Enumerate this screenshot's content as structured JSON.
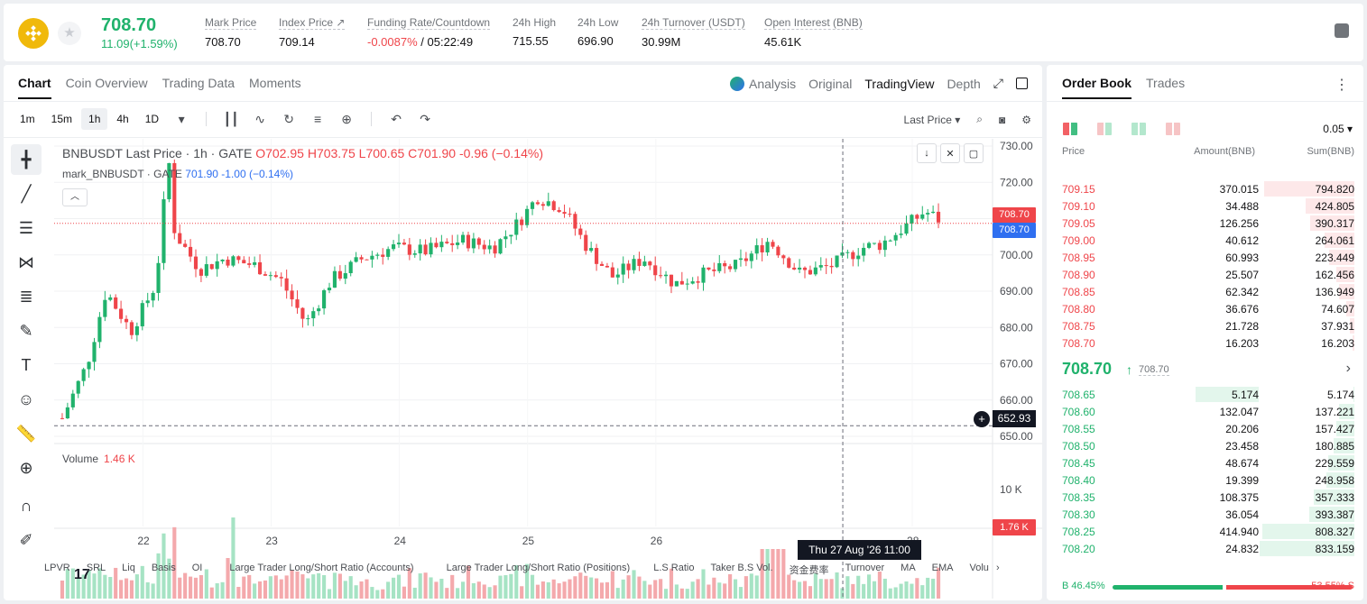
{
  "ticker": {
    "last_price": "708.70",
    "change": "11.09(+1.59%)",
    "stats": [
      {
        "label": "Mark Price",
        "value": "708.70"
      },
      {
        "label": "Index Price ↗",
        "value": "709.14"
      },
      {
        "label": "Funding Rate/Countdown",
        "value_neg": "-0.0087%",
        "value": " / 05:22:49"
      },
      {
        "label": "24h High",
        "value": "715.55"
      },
      {
        "label": "24h Low",
        "value": "696.90"
      },
      {
        "label": "24h Turnover (USDT)",
        "value": "30.99M"
      },
      {
        "label": "Open Interest (BNB)",
        "value": "45.61K"
      }
    ]
  },
  "chart_tabs": [
    "Chart",
    "Coin Overview",
    "Trading Data",
    "Moments"
  ],
  "view_tabs": {
    "analysis": "Analysis",
    "original": "Original",
    "tradingview": "TradingView",
    "depth": "Depth"
  },
  "timeframes": [
    "1m",
    "15m",
    "1h",
    "4h",
    "1D"
  ],
  "price_type": "Last Price",
  "legend": {
    "symbol": "BNBUSDT Last Price · 1h · GATE",
    "o": "O702.95",
    "h": "H703.75",
    "l": "L700.65",
    "c": "C701.90",
    "chg": "-0.96 (−0.14%)",
    "mark": "mark_BNBUSDT · GATE",
    "mark_val": "701.90  -1.00 (−0.14%)"
  },
  "volume": {
    "label": "Volume",
    "value": "1.46 K"
  },
  "tags": {
    "last": "708.70",
    "mark": "708.70",
    "cross": "652.93",
    "vol": "1.76 K",
    "vol_axis": "10 K",
    "date": "Thu 27 Aug '26   11:00"
  },
  "chart_data": {
    "type": "candlestick",
    "title": "BNBUSDT Last Price · 1h · GATE",
    "y_ticks": [
      730,
      720,
      710,
      700,
      690,
      680,
      670,
      660,
      650
    ],
    "ylim": [
      650,
      732
    ],
    "x_ticks": [
      "22",
      "23",
      "24",
      "25",
      "26",
      "28"
    ],
    "x_tick_days": [
      22,
      23,
      24,
      25,
      26,
      28
    ],
    "start_day": 21.35,
    "hours": 165,
    "anchors": [
      [
        0,
        655
      ],
      [
        8,
        670
      ],
      [
        14,
        690
      ],
      [
        22,
        679
      ],
      [
        30,
        692
      ],
      [
        34,
        727
      ],
      [
        36,
        706
      ],
      [
        44,
        696
      ],
      [
        52,
        699
      ],
      [
        62,
        697
      ],
      [
        70,
        693
      ],
      [
        78,
        681
      ],
      [
        86,
        693
      ],
      [
        96,
        699
      ],
      [
        106,
        702
      ],
      [
        116,
        701
      ],
      [
        128,
        704
      ],
      [
        138,
        702
      ],
      [
        146,
        709
      ],
      [
        152,
        716
      ],
      [
        160,
        713
      ],
      [
        168,
        702
      ],
      [
        176,
        694
      ],
      [
        186,
        699
      ],
      [
        196,
        692
      ],
      [
        206,
        695
      ],
      [
        216,
        697
      ],
      [
        226,
        704
      ],
      [
        236,
        695
      ],
      [
        246,
        697
      ],
      [
        256,
        702
      ],
      [
        262,
        703
      ],
      [
        270,
        708
      ],
      [
        276,
        712
      ],
      [
        282,
        709
      ]
    ]
  },
  "indicators": [
    "LPVR",
    "SRL",
    "Liq",
    "Basis",
    "OI",
    "Large Trader Long/Short Ratio (Accounts)",
    "Large Trader Long/Short Ratio (Positions)",
    "L.S Ratio",
    "Taker B.S Vol.",
    "资金费率",
    "Turnover",
    "MA",
    "EMA",
    "Volu"
  ],
  "book": {
    "tabs": [
      "Order Book",
      "Trades"
    ],
    "precision": "0.05 ▾",
    "headers": {
      "price": "Price",
      "amount": "Amount(BNB)",
      "sum": "Sum(BNB)"
    },
    "asks": [
      [
        "709.15",
        "370.015",
        "794.820"
      ],
      [
        "709.10",
        "34.488",
        "424.805"
      ],
      [
        "709.05",
        "126.256",
        "390.317"
      ],
      [
        "709.00",
        "40.612",
        "264.061"
      ],
      [
        "708.95",
        "60.993",
        "223.449"
      ],
      [
        "708.90",
        "25.507",
        "162.456"
      ],
      [
        "708.85",
        "62.342",
        "136.949"
      ],
      [
        "708.80",
        "36.676",
        "74.607"
      ],
      [
        "708.75",
        "21.728",
        "37.931"
      ],
      [
        "708.70",
        "16.203",
        "16.203"
      ]
    ],
    "mid": "708.70",
    "mid_mark": "708.70",
    "bids": [
      [
        "708.65",
        "5.174",
        "5.174"
      ],
      [
        "708.60",
        "132.047",
        "137.221"
      ],
      [
        "708.55",
        "20.206",
        "157.427"
      ],
      [
        "708.50",
        "23.458",
        "180.885"
      ],
      [
        "708.45",
        "48.674",
        "229.559"
      ],
      [
        "708.40",
        "19.399",
        "248.958"
      ],
      [
        "708.35",
        "108.375",
        "357.333"
      ],
      [
        "708.30",
        "36.054",
        "393.387"
      ],
      [
        "708.25",
        "414.940",
        "808.327"
      ],
      [
        "708.20",
        "24.832",
        "833.159"
      ]
    ],
    "buy_pct": "B 46.45%",
    "sell_pct": "53.55% S",
    "buy_ratio": 0.4645
  },
  "colors": {
    "up": "#20b26c",
    "down": "#ef454a",
    "mark": "#2f6ff0"
  }
}
